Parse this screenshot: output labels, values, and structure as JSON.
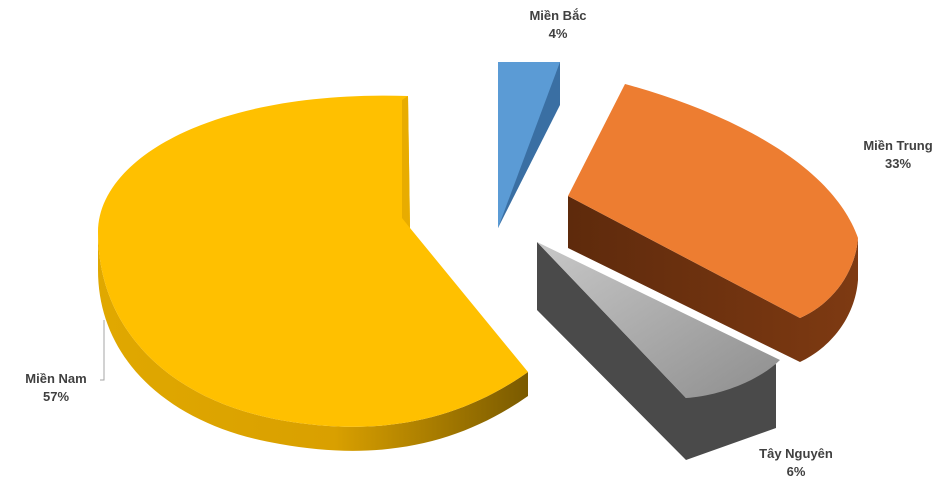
{
  "chart_data": {
    "type": "pie",
    "style": "3d-exploded",
    "title": "",
    "legend": "none",
    "slices": [
      {
        "name": "Miền Bắc",
        "percent_label": "4%",
        "value": 4,
        "color": "#5B9BD5",
        "side_color": "#3A6FA3"
      },
      {
        "name": "Miền Trung",
        "percent_label": "33%",
        "value": 33,
        "color": "#ED7D31",
        "side_color": "#7A3612"
      },
      {
        "name": "Tây Nguyên",
        "percent_label": "6%",
        "value": 6,
        "color": "#A5A5A5",
        "side_color": "#4F4F4F"
      },
      {
        "name": "Miền Nam",
        "percent_label": "57%",
        "value": 57,
        "color": "#FFC000",
        "side_color": "#C99300"
      }
    ]
  }
}
